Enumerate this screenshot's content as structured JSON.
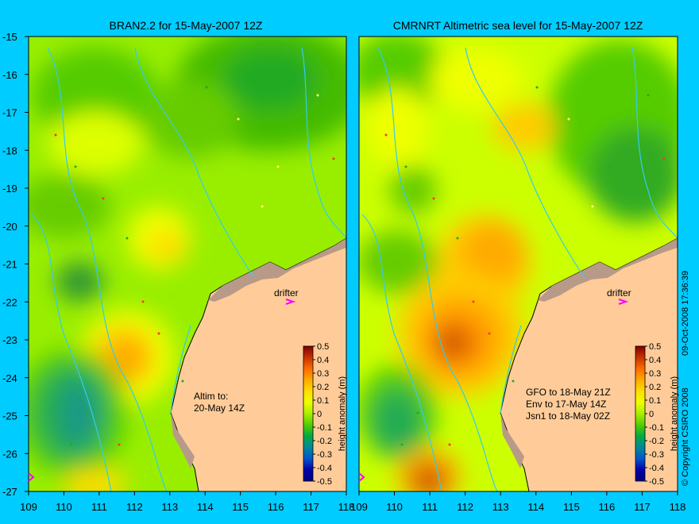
{
  "left_panel": {
    "title": "BRAN2.2 for 15-May-2007 12Z",
    "drifter_label": "drifter",
    "note_lines": [
      "Altim to:",
      "20-May 14Z"
    ]
  },
  "right_panel": {
    "title": "CMRNRT Altimetric sea level  for 15-May-2007 12Z",
    "drifter_label": "drifter",
    "note_lines": [
      "GFO to 18-May 21Z",
      "Env to 17-May 14Z",
      "Jsn1 to 18-May 02Z"
    ]
  },
  "y_ticks": [
    "-15",
    "-16",
    "-17",
    "-18",
    "-19",
    "-20",
    "-21",
    "-22",
    "-23",
    "-24",
    "-25",
    "-26",
    "-27"
  ],
  "x_ticks": [
    "109",
    "110",
    "111",
    "112",
    "113",
    "114",
    "115",
    "116",
    "117",
    "118"
  ],
  "colorbar": {
    "label": "height anomaly (m)",
    "ticks": [
      "0.5",
      "0.4",
      "0.3",
      "0.2",
      "0.1",
      "0",
      "-0.1",
      "-0.2",
      "-0.3",
      "-0.4",
      "-0.5"
    ],
    "colors": [
      "#7f0000",
      "#c83200",
      "#ff6a00",
      "#ffaa00",
      "#ffdd00",
      "#eeff00",
      "#aaee00",
      "#55cc00",
      "#00aa44",
      "#008899",
      "#0055cc",
      "#0000aa",
      "#000080"
    ]
  },
  "copyright": "© Copyright CSIRO 2008",
  "timestamp": "09-Oct-2008 17:36:39",
  "colors": {
    "background": "#00ccff",
    "land": "#ffcc99",
    "shelf_edge": "#7a5a50",
    "drifter_arrow": "#ff00ff"
  }
}
